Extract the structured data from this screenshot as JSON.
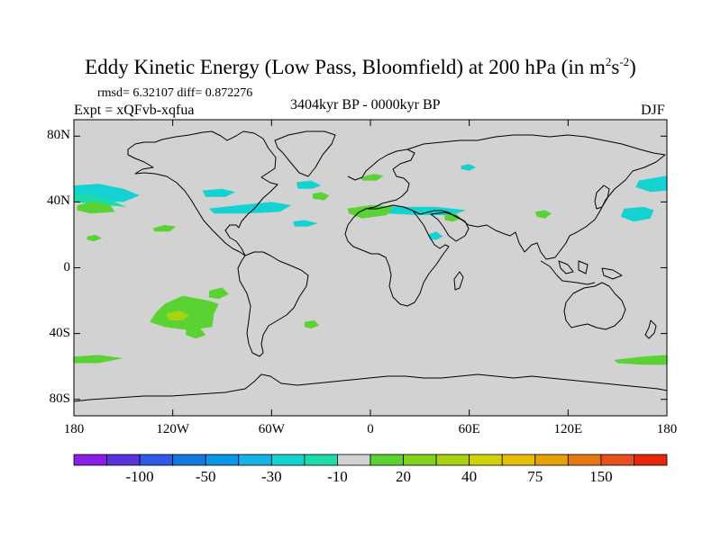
{
  "title": {
    "main": "Eddy Kinetic Energy (Low Pass, Bloomfield) at 200 hPa (in m",
    "sup1": "2",
    "mid": "s",
    "sup2": "-2",
    "end": ")"
  },
  "stats": "rmsd= 6.32107 diff= 0.872276",
  "experiment": "Expt = xQFvb-xqfua",
  "period": "3404kyr BP - 0000kyr BP",
  "season": "DJF",
  "map": {
    "projection": "cylindrical equidistant",
    "lon_range": [
      -180,
      180
    ],
    "lat_range": [
      -90,
      90
    ],
    "background_color": "#d2d2d2",
    "lat_ticks": [
      {
        "value": 80,
        "label": "80N"
      },
      {
        "value": 40,
        "label": "40N"
      },
      {
        "value": 0,
        "label": "0"
      },
      {
        "value": -40,
        "label": "40S"
      },
      {
        "value": -80,
        "label": "80S"
      }
    ],
    "lon_ticks": [
      {
        "value": -180,
        "label": "180"
      },
      {
        "value": -120,
        "label": "120W"
      },
      {
        "value": -60,
        "label": "60W"
      },
      {
        "value": 0,
        "label": "0"
      },
      {
        "value": 60,
        "label": "60E"
      },
      {
        "value": 120,
        "label": "120E"
      },
      {
        "value": 180,
        "label": "180"
      }
    ]
  },
  "colorbar": {
    "colors": [
      "#8c1ee6",
      "#5a32dc",
      "#2d5ae6",
      "#1478dc",
      "#0a96e6",
      "#14b4e6",
      "#14d2d2",
      "#1edcaa",
      "#d2d2d2",
      "#5ad232",
      "#82d21e",
      "#aad214",
      "#d2d20a",
      "#e6be0a",
      "#e6a00a",
      "#e67814",
      "#e6501e",
      "#e6280a"
    ],
    "labels": [
      {
        "index": 2,
        "text": "-100"
      },
      {
        "index": 4,
        "text": "-50"
      },
      {
        "index": 6,
        "text": "-30"
      },
      {
        "index": 8,
        "text": "-10"
      },
      {
        "index": 10,
        "text": "20"
      },
      {
        "index": 12,
        "text": "40"
      },
      {
        "index": 14,
        "text": "75"
      },
      {
        "index": 16,
        "text": "150"
      }
    ]
  },
  "anomalies": [
    {
      "level": "-30",
      "color": "#14d2d2",
      "points": [
        [
          -180,
          50
        ],
        [
          -165,
          51
        ],
        [
          -150,
          48
        ],
        [
          -140,
          44
        ],
        [
          -150,
          40
        ],
        [
          -168,
          41
        ],
        [
          -180,
          44
        ]
      ]
    },
    {
      "level": "-10",
      "color": "#1edcaa",
      "points": [
        [
          -180,
          45
        ],
        [
          -168,
          44
        ],
        [
          -155,
          40
        ],
        [
          -148,
          37
        ],
        [
          -162,
          38
        ],
        [
          -180,
          40
        ]
      ]
    },
    {
      "level": "-30",
      "color": "#14d2d2",
      "points": [
        [
          -102,
          47
        ],
        [
          -90,
          48
        ],
        [
          -82,
          46
        ],
        [
          -88,
          43
        ],
        [
          -100,
          43
        ]
      ]
    },
    {
      "level": "-30",
      "color": "#14d2d2",
      "points": [
        [
          -45,
          52
        ],
        [
          -36,
          53
        ],
        [
          -30,
          50
        ],
        [
          -35,
          48
        ],
        [
          -44,
          48
        ]
      ]
    },
    {
      "level": "-30",
      "color": "#14d2d2",
      "points": [
        [
          -98,
          36
        ],
        [
          -80,
          38
        ],
        [
          -60,
          40
        ],
        [
          -48,
          38
        ],
        [
          -55,
          34
        ],
        [
          -75,
          33
        ],
        [
          -95,
          33
        ]
      ]
    },
    {
      "level": "-30",
      "color": "#14d2d2",
      "points": [
        [
          -47,
          28
        ],
        [
          -40,
          29
        ],
        [
          -32,
          27
        ],
        [
          -38,
          25
        ],
        [
          -46,
          25
        ]
      ]
    },
    {
      "level": "-30",
      "color": "#14d2d2",
      "points": [
        [
          2,
          38
        ],
        [
          20,
          37
        ],
        [
          40,
          37
        ],
        [
          58,
          35
        ],
        [
          50,
          32
        ],
        [
          30,
          32
        ],
        [
          10,
          33
        ]
      ]
    },
    {
      "level": "-30",
      "color": "#14d2d2",
      "points": [
        [
          35,
          20
        ],
        [
          40,
          22
        ],
        [
          44,
          19
        ],
        [
          40,
          17
        ],
        [
          36,
          17
        ]
      ]
    },
    {
      "level": "-30",
      "color": "#14d2d2",
      "points": [
        [
          154,
          36
        ],
        [
          166,
          37
        ],
        [
          172,
          35
        ],
        [
          170,
          30
        ],
        [
          160,
          28
        ],
        [
          152,
          31
        ]
      ]
    },
    {
      "level": "-30",
      "color": "#14d2d2",
      "points": [
        [
          163,
          53
        ],
        [
          180,
          56
        ],
        [
          180,
          47
        ],
        [
          170,
          46
        ],
        [
          161,
          49
        ]
      ]
    },
    {
      "level": "-30",
      "color": "#14d2d2",
      "points": [
        [
          55,
          62
        ],
        [
          60,
          63
        ],
        [
          64,
          61
        ],
        [
          60,
          59
        ],
        [
          55,
          60
        ]
      ]
    },
    {
      "level": "20",
      "color": "#5ad232",
      "points": [
        [
          -178,
          38
        ],
        [
          -168,
          40
        ],
        [
          -158,
          38
        ],
        [
          -155,
          34
        ],
        [
          -170,
          33
        ],
        [
          -178,
          35
        ]
      ]
    },
    {
      "level": "20",
      "color": "#5ad232",
      "points": [
        [
          -132,
          24
        ],
        [
          -125,
          26
        ],
        [
          -118,
          25
        ],
        [
          -122,
          22
        ],
        [
          -131,
          22
        ]
      ]
    },
    {
      "level": "20",
      "color": "#5ad232",
      "points": [
        [
          -172,
          19
        ],
        [
          -167,
          20
        ],
        [
          -163,
          18
        ],
        [
          -168,
          16
        ],
        [
          -172,
          17
        ]
      ]
    },
    {
      "level": "20",
      "color": "#5ad232",
      "points": [
        [
          -35,
          45
        ],
        [
          -30,
          46
        ],
        [
          -25,
          44
        ],
        [
          -28,
          41
        ],
        [
          -35,
          42
        ]
      ]
    },
    {
      "level": "20",
      "color": "#5ad232",
      "points": [
        [
          -14,
          36
        ],
        [
          0,
          38
        ],
        [
          14,
          37
        ],
        [
          10,
          32
        ],
        [
          -5,
          30
        ],
        [
          -13,
          33
        ]
      ]
    },
    {
      "level": "20",
      "color": "#5ad232",
      "points": [
        [
          45,
          32
        ],
        [
          52,
          33
        ],
        [
          55,
          30
        ],
        [
          50,
          28
        ],
        [
          45,
          29
        ]
      ]
    },
    {
      "level": "20",
      "color": "#5ad232",
      "points": [
        [
          100,
          34
        ],
        [
          106,
          35
        ],
        [
          110,
          33
        ],
        [
          106,
          30
        ],
        [
          101,
          31
        ]
      ]
    },
    {
      "level": "20",
      "color": "#5ad232",
      "points": [
        [
          -6,
          55
        ],
        [
          2,
          57
        ],
        [
          8,
          56
        ],
        [
          4,
          53
        ],
        [
          -5,
          53
        ]
      ]
    },
    {
      "level": "20",
      "color": "#5ad232",
      "points": [
        [
          -125,
          -22
        ],
        [
          -114,
          -17
        ],
        [
          -98,
          -20
        ],
        [
          -92,
          -22
        ],
        [
          -95,
          -28
        ],
        [
          -96,
          -36
        ],
        [
          -110,
          -38
        ],
        [
          -125,
          -36
        ],
        [
          -134,
          -33
        ],
        [
          -130,
          -27
        ]
      ]
    },
    {
      "level": "20",
      "color": "#5ad232",
      "points": [
        [
          -98,
          -14
        ],
        [
          -90,
          -12
        ],
        [
          -86,
          -16
        ],
        [
          -92,
          -19
        ],
        [
          -98,
          -18
        ]
      ]
    },
    {
      "level": "20",
      "color": "#5ad232",
      "points": [
        [
          -112,
          -37
        ],
        [
          -103,
          -37
        ],
        [
          -100,
          -41
        ],
        [
          -106,
          -43
        ],
        [
          -112,
          -41
        ]
      ]
    },
    {
      "level": "20",
      "color": "#5ad232",
      "points": [
        [
          -40,
          -33
        ],
        [
          -34,
          -32
        ],
        [
          -31,
          -35
        ],
        [
          -36,
          -37
        ],
        [
          -40,
          -36
        ]
      ]
    },
    {
      "level": "20",
      "color": "#5ad232",
      "points": [
        [
          -180,
          -54
        ],
        [
          -165,
          -53
        ],
        [
          -150,
          -55
        ],
        [
          -165,
          -58
        ],
        [
          -180,
          -58
        ]
      ]
    },
    {
      "level": "20",
      "color": "#5ad232",
      "points": [
        [
          148,
          -56
        ],
        [
          165,
          -54
        ],
        [
          180,
          -53
        ],
        [
          180,
          -59
        ],
        [
          165,
          -59
        ],
        [
          150,
          -58
        ]
      ]
    },
    {
      "level": "40",
      "color": "#aad214",
      "points": [
        [
          -124,
          -28
        ],
        [
          -116,
          -26
        ],
        [
          -110,
          -29
        ],
        [
          -114,
          -32
        ],
        [
          -122,
          -32
        ]
      ]
    }
  ]
}
